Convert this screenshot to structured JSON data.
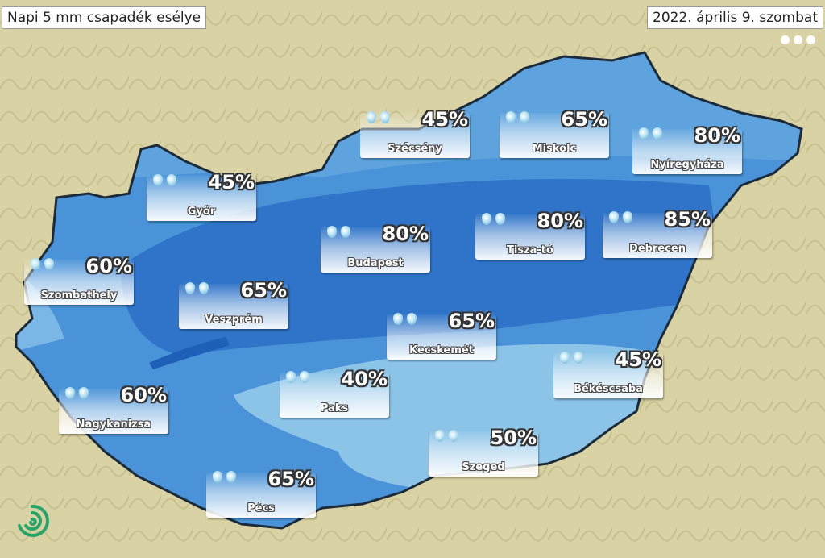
{
  "header": {
    "title": "Napi 5 mm csapadék esélye",
    "date": "2022. április 9. szombat"
  },
  "colors": {
    "land": "#d9d3a6",
    "low": "#8cc4e8",
    "mid": "#4a93d8",
    "high": "#2f74c8",
    "border": "#1c2a3a"
  },
  "icons": {
    "drop": "raindrop-icon",
    "menu": "more-dots-icon",
    "logo": "spiral-logo"
  },
  "cities": [
    {
      "name": "Szécsény",
      "chance": "45%"
    },
    {
      "name": "Miskolc",
      "chance": "65%"
    },
    {
      "name": "Nyíregyháza",
      "chance": "80%"
    },
    {
      "name": "Győr",
      "chance": "45%"
    },
    {
      "name": "Budapest",
      "chance": "80%"
    },
    {
      "name": "Tisza-tó",
      "chance": "80%"
    },
    {
      "name": "Debrecen",
      "chance": "85%"
    },
    {
      "name": "Szombathely",
      "chance": "60%"
    },
    {
      "name": "Veszprém",
      "chance": "65%"
    },
    {
      "name": "Kecskemét",
      "chance": "65%"
    },
    {
      "name": "Békéscsaba",
      "chance": "45%"
    },
    {
      "name": "Paks",
      "chance": "40%"
    },
    {
      "name": "Nagykanizsa",
      "chance": "60%"
    },
    {
      "name": "Szeged",
      "chance": "50%"
    },
    {
      "name": "Pécs",
      "chance": "65%"
    }
  ]
}
